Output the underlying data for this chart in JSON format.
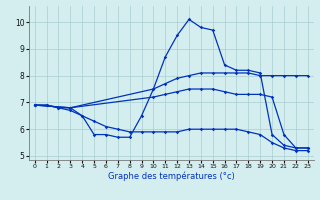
{
  "xlabel": "Graphe des températures (°c)",
  "background_color": "#d4eef0",
  "grid_color": "#a8cdd0",
  "line_color": "#0033bb",
  "xlim": [
    -0.5,
    23.5
  ],
  "ylim": [
    4.85,
    10.6
  ],
  "yticks": [
    5,
    6,
    7,
    8,
    9,
    10
  ],
  "xticks": [
    0,
    1,
    2,
    3,
    4,
    5,
    6,
    7,
    8,
    9,
    10,
    11,
    12,
    13,
    14,
    15,
    16,
    17,
    18,
    19,
    20,
    21,
    22,
    23
  ],
  "lines": [
    {
      "x": [
        0,
        1,
        2,
        3,
        4,
        5,
        6,
        7,
        8,
        9,
        10,
        11,
        12,
        13,
        14,
        15,
        16,
        17,
        18,
        19,
        20,
        21,
        22,
        23
      ],
      "y": [
        6.9,
        6.9,
        6.8,
        6.8,
        6.5,
        5.8,
        5.8,
        5.7,
        5.7,
        6.5,
        7.5,
        8.7,
        9.5,
        10.1,
        9.8,
        9.7,
        8.4,
        8.2,
        8.2,
        8.1,
        5.8,
        5.4,
        5.3,
        5.3
      ]
    },
    {
      "x": [
        0,
        3,
        10,
        11,
        12,
        13,
        14,
        15,
        16,
        17,
        18,
        19,
        20,
        21,
        22,
        23
      ],
      "y": [
        6.9,
        6.8,
        7.5,
        7.7,
        7.9,
        8.0,
        8.1,
        8.1,
        8.1,
        8.1,
        8.1,
        8.0,
        8.0,
        8.0,
        8.0,
        8.0
      ]
    },
    {
      "x": [
        0,
        3,
        10,
        11,
        12,
        13,
        14,
        15,
        16,
        17,
        18,
        19,
        20,
        21,
        22,
        23
      ],
      "y": [
        6.9,
        6.8,
        7.2,
        7.3,
        7.4,
        7.5,
        7.5,
        7.5,
        7.4,
        7.3,
        7.3,
        7.3,
        7.2,
        5.8,
        5.3,
        5.3
      ]
    },
    {
      "x": [
        0,
        1,
        2,
        3,
        4,
        5,
        6,
        7,
        8,
        9,
        10,
        11,
        12,
        13,
        14,
        15,
        16,
        17,
        18,
        19,
        20,
        21,
        22,
        23
      ],
      "y": [
        6.9,
        6.9,
        6.8,
        6.7,
        6.5,
        6.3,
        6.1,
        6.0,
        5.9,
        5.9,
        5.9,
        5.9,
        5.9,
        6.0,
        6.0,
        6.0,
        6.0,
        6.0,
        5.9,
        5.8,
        5.5,
        5.3,
        5.2,
        5.2
      ]
    }
  ]
}
